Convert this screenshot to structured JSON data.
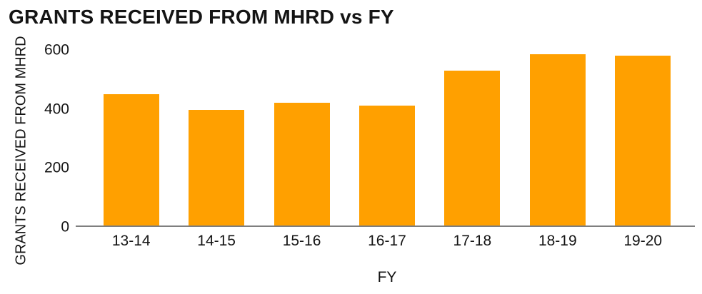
{
  "chart_data": {
    "type": "bar",
    "title": "GRANTS RECEIVED FROM MHRD vs FY",
    "xlabel": "FY",
    "ylabel": "GRANTS RECEIVED FROM MHRD",
    "categories": [
      "13-14",
      "14-15",
      "15-16",
      "16-17",
      "17-18",
      "18-19",
      "19-20"
    ],
    "values": [
      450,
      395,
      420,
      410,
      530,
      585,
      580
    ],
    "ylim": [
      0,
      600
    ],
    "yticks": [
      0,
      200,
      400,
      600
    ],
    "grid": false,
    "legend": null,
    "bar_color": "#FFA000",
    "axis_line_color": "#7F7F7F",
    "text_color": "#141414"
  }
}
